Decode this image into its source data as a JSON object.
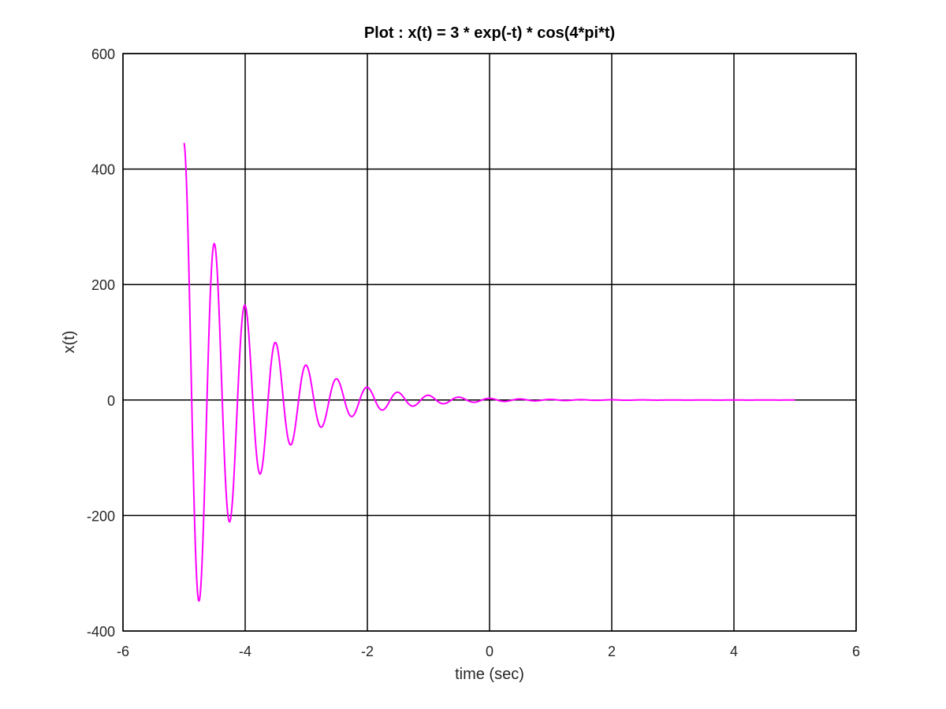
{
  "chart_data": {
    "type": "line",
    "title": "Plot : x(t) = 3 * exp(-t) * cos(4*pi*t)",
    "xlabel": "time (sec)",
    "ylabel": "x(t)",
    "xlim": [
      -6,
      6
    ],
    "ylim": [
      -400,
      600
    ],
    "xticks": [
      -6,
      -4,
      -2,
      0,
      2,
      4,
      6
    ],
    "yticks": [
      -400,
      -200,
      0,
      200,
      400,
      600
    ],
    "grid": true,
    "series": [
      {
        "color": "#ff00ff",
        "x_range": [
          -5,
          5
        ],
        "x_step": 0.001,
        "function": "3 * exp(-t) * cos(4*pi*t)",
        "peaks_approx": [
          {
            "x": -5.0,
            "y": 445
          },
          {
            "x": -4.77,
            "y": -348
          },
          {
            "x": -4.52,
            "y": 271
          },
          {
            "x": -4.27,
            "y": -212
          },
          {
            "x": -4.02,
            "y": 164
          },
          {
            "x": -3.77,
            "y": -128
          },
          {
            "x": -3.52,
            "y": 100
          },
          {
            "x": -3.27,
            "y": -78
          },
          {
            "x": -3.02,
            "y": 61
          },
          {
            "x": -2.77,
            "y": -47
          },
          {
            "x": -2.52,
            "y": 37
          },
          {
            "x": -2.27,
            "y": -29
          },
          {
            "x": -2.02,
            "y": 22
          },
          {
            "x": -1.77,
            "y": -17
          }
        ]
      }
    ],
    "colors": {
      "line": "#ff00ff",
      "axis": "#000000",
      "grid": "#000000",
      "background": "#ffffff"
    }
  }
}
